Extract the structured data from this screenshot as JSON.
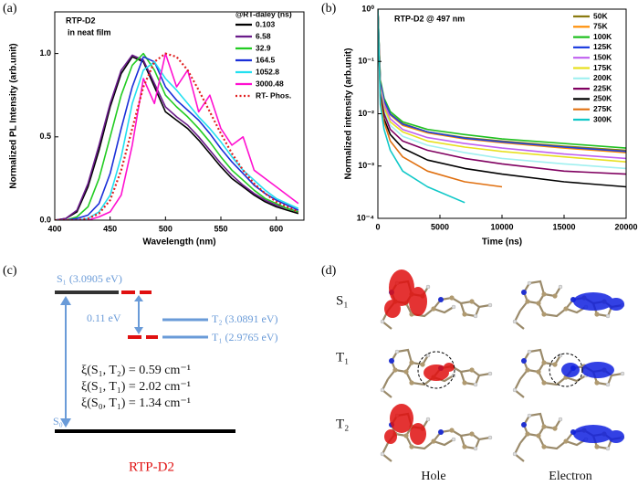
{
  "chart_data": [
    {
      "type": "line",
      "panel_label": "(a)",
      "xlabel": "Wavelength (nm)",
      "ylabel": "Normalized PL Intensity (arb.unit)",
      "annotations": [
        "RTP-D2",
        "in neat film"
      ],
      "legend_title": "@RT-daley (ns)",
      "legend": "upper right",
      "xlim": [
        400,
        625
      ],
      "ylim": [
        0,
        1.25
      ],
      "xticks": [
        400,
        450,
        500,
        550,
        600
      ],
      "yticks": [
        {
          "value": 0,
          "label": "0.0"
        },
        {
          "value": 0.5,
          "label": "0.5"
        },
        {
          "value": 1,
          "label": "1.0"
        }
      ],
      "x": [
        400,
        410,
        420,
        430,
        440,
        450,
        460,
        470,
        480,
        490,
        500,
        510,
        520,
        530,
        540,
        550,
        560,
        570,
        580,
        590,
        600,
        610,
        620
      ],
      "series": [
        {
          "name": "0.103",
          "color": "#000000",
          "style": "solid",
          "values": [
            0,
            0.01,
            0.05,
            0.2,
            0.42,
            0.68,
            0.88,
            0.98,
            0.95,
            0.8,
            0.65,
            0.6,
            0.55,
            0.48,
            0.4,
            0.32,
            0.25,
            0.2,
            0.15,
            0.11,
            0.08,
            0.06,
            0.04
          ]
        },
        {
          "name": "6.58",
          "color": "#6a1b8a",
          "style": "solid",
          "values": [
            0,
            0.01,
            0.06,
            0.22,
            0.45,
            0.7,
            0.9,
            0.99,
            0.96,
            0.82,
            0.68,
            0.62,
            0.57,
            0.5,
            0.42,
            0.34,
            0.27,
            0.21,
            0.16,
            0.12,
            0.09,
            0.07,
            0.05
          ]
        },
        {
          "name": "32.9",
          "color": "#22cc22",
          "style": "solid",
          "values": [
            0,
            0,
            0.02,
            0.08,
            0.25,
            0.5,
            0.75,
            0.93,
            1.0,
            0.9,
            0.75,
            0.68,
            0.62,
            0.55,
            0.47,
            0.38,
            0.3,
            0.24,
            0.18,
            0.13,
            0.1,
            0.07,
            0.05
          ]
        },
        {
          "name": "164.5",
          "color": "#1a2fd8",
          "style": "solid",
          "values": [
            0,
            0,
            0.01,
            0.03,
            0.1,
            0.28,
            0.55,
            0.8,
            0.98,
            0.95,
            0.8,
            0.72,
            0.66,
            0.6,
            0.52,
            0.43,
            0.35,
            0.28,
            0.21,
            0.16,
            0.12,
            0.09,
            0.06
          ]
        },
        {
          "name": "1052.8",
          "color": "#22e0f0",
          "style": "solid",
          "values": [
            0,
            0,
            0,
            0.01,
            0.05,
            0.15,
            0.38,
            0.7,
            0.9,
            0.95,
            0.85,
            0.78,
            0.7,
            0.62,
            0.55,
            0.47,
            0.38,
            0.3,
            0.24,
            0.18,
            0.13,
            0.1,
            0.07
          ]
        },
        {
          "name": "3000.48",
          "color": "#ff10d0",
          "style": "solid",
          "values": [
            0,
            0,
            0,
            0,
            0.02,
            0.05,
            0.15,
            0.45,
            0.85,
            0.7,
            1.0,
            0.8,
            0.9,
            0.65,
            0.75,
            0.55,
            0.45,
            0.5,
            0.3,
            0.25,
            0.2,
            0.15,
            0.1
          ]
        },
        {
          "name": "RT- Phos.",
          "color": "#e02020",
          "style": "dotted",
          "values": [
            0,
            0,
            0,
            0.01,
            0.04,
            0.12,
            0.3,
            0.55,
            0.8,
            0.95,
            1.0,
            0.98,
            0.9,
            0.78,
            0.65,
            0.52,
            0.4,
            0.3,
            0.22,
            0.16,
            0.11,
            0.08,
            0.05
          ]
        }
      ]
    },
    {
      "type": "line",
      "panel_label": "(b)",
      "xlabel": "Time (ns)",
      "ylabel": "Normalized intensity (arb.unit)",
      "annotations": [
        "RTP-D2 @ 497 nm"
      ],
      "legend": "upper right",
      "log_y": true,
      "xlim": [
        0,
        20000
      ],
      "ylim": [
        0.0001,
        1
      ],
      "xticks": [
        0,
        5000,
        10000,
        15000,
        20000
      ],
      "yticks": [
        {
          "value": 0.0001,
          "label": "10⁻⁴"
        },
        {
          "value": 0.001,
          "label": "10⁻³"
        },
        {
          "value": 0.01,
          "label": "10⁻²"
        },
        {
          "value": 0.1,
          "label": "10⁻¹"
        },
        {
          "value": 1,
          "label": "10⁰"
        }
      ],
      "x": [
        0,
        200,
        500,
        1000,
        2000,
        4000,
        7000,
        10000,
        15000,
        20000
      ],
      "series": [
        {
          "name": "50K",
          "color": "#8a7a10",
          "style": "solid",
          "values": [
            1,
            0.04,
            0.018,
            0.01,
            0.0065,
            0.0045,
            0.0035,
            0.003,
            0.0024,
            0.002
          ]
        },
        {
          "name": "75K",
          "color": "#ff8c00",
          "style": "solid",
          "values": [
            1,
            0.04,
            0.017,
            0.0095,
            0.006,
            0.0043,
            0.0033,
            0.0028,
            0.0022,
            0.0018
          ]
        },
        {
          "name": "100K",
          "color": "#20c020",
          "style": "solid",
          "values": [
            1,
            0.045,
            0.02,
            0.011,
            0.007,
            0.005,
            0.004,
            0.0033,
            0.0027,
            0.0022
          ]
        },
        {
          "name": "125K",
          "color": "#2040e0",
          "style": "solid",
          "values": [
            1,
            0.04,
            0.018,
            0.0098,
            0.0063,
            0.0045,
            0.0034,
            0.0029,
            0.0023,
            0.0019
          ]
        },
        {
          "name": "150K",
          "color": "#c060f0",
          "style": "solid",
          "values": [
            1,
            0.035,
            0.015,
            0.008,
            0.005,
            0.0035,
            0.0027,
            0.0022,
            0.0017,
            0.0014
          ]
        },
        {
          "name": "175K",
          "color": "#e8e020",
          "style": "solid",
          "values": [
            1,
            0.03,
            0.013,
            0.007,
            0.0045,
            0.003,
            0.0023,
            0.0019,
            0.0015,
            0.0012
          ]
        },
        {
          "name": "200K",
          "color": "#a0f0f0",
          "style": "solid",
          "values": [
            1,
            0.028,
            0.011,
            0.006,
            0.0037,
            0.0025,
            0.0018,
            0.0014,
            0.0011,
            0.0009
          ]
        },
        {
          "name": "225K",
          "color": "#800060",
          "style": "solid",
          "values": [
            1,
            0.025,
            0.01,
            0.005,
            0.003,
            0.002,
            0.0014,
            0.0011,
            0.0008,
            0.0007
          ]
        },
        {
          "name": "250K",
          "color": "#000000",
          "style": "solid",
          "values": [
            1,
            0.022,
            0.008,
            0.004,
            0.0022,
            0.0013,
            0.0009,
            0.0007,
            0.0005,
            0.0004
          ]
        },
        {
          "name": "275K",
          "color": "#e07010",
          "style": "solid",
          "values": [
            1,
            0.02,
            0.007,
            0.003,
            0.0015,
            0.0008,
            0.0005,
            0.0004,
            null,
            null
          ]
        },
        {
          "name": "300K",
          "color": "#10c8c8",
          "style": "solid",
          "values": [
            1,
            0.015,
            0.005,
            0.002,
            0.0008,
            0.0004,
            0.0002,
            null,
            null,
            null
          ]
        }
      ]
    }
  ],
  "diagram": {
    "panel_label": "(c)",
    "s1": "S₁ (3.0905 eV)",
    "t2": "T₂ (3.0891 eV)",
    "t1": "T₁ (2.9765 eV)",
    "gap": "0.11 eV",
    "s0": "S₀",
    "soc": [
      "ξ(S₁, T₂) = 0.59 cm⁻¹",
      "ξ(S₁, T₁) = 2.02 cm⁻¹",
      "ξ(S₀, T₁) = 1.34 cm⁻¹"
    ],
    "caption": "RTP-D2"
  },
  "orbitals": {
    "panel_label": "(d)",
    "rows": [
      "S₁",
      "T₁",
      "T₂"
    ],
    "columns": [
      "Hole",
      "Electron"
    ]
  }
}
